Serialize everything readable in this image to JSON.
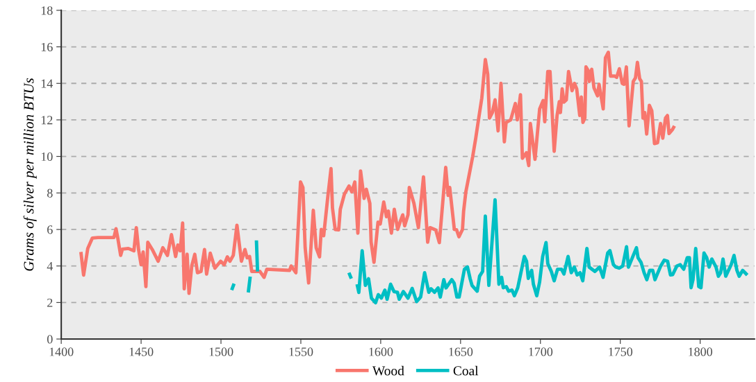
{
  "chart_data": {
    "type": "line",
    "ylabel": "Grams of silver per million BTUs",
    "xlim": [
      1400,
      1834
    ],
    "xticks": [
      1400,
      1450,
      1500,
      1550,
      1600,
      1650,
      1700,
      1750,
      1800
    ],
    "ylim": [
      0,
      18
    ],
    "yticks": [
      0,
      2,
      4,
      6,
      8,
      10,
      12,
      14,
      16,
      18
    ],
    "grid": "y",
    "legend": "bottom",
    "line_style": "solid",
    "marker": "none",
    "series": [
      {
        "name": "Wood",
        "color": "#f8766d",
        "x": [
          1412.3,
          1414,
          1416.6,
          1419.5,
          1423,
          1433,
          1434.3,
          1435.4,
          1437.2,
          1438.3,
          1442,
          1445.5,
          1447,
          1448.4,
          1450,
          1451.3,
          1453,
          1454.2,
          1457,
          1460.7,
          1463.6,
          1466.5,
          1469,
          1471.6,
          1473,
          1474.5,
          1476,
          1477,
          1478.8,
          1480,
          1481.7,
          1483.6,
          1485.3,
          1487.5,
          1489.7,
          1491,
          1493.3,
          1496.2,
          1499.8,
          1502,
          1504,
          1505.6,
          1507.7,
          1510,
          1512.8,
          1515,
          1516.4,
          1517.9,
          1519.3,
          1524.4,
          1527,
          1528.7,
          1543,
          1543.9,
          1546.9,
          1549.8,
          1551.3,
          1552.7,
          1554.9,
          1557.8,
          1559.6,
          1561.7,
          1562.8,
          1564.3,
          1566.9,
          1568.9,
          1569.8,
          1571.5,
          1573.7,
          1574.7,
          1577.3,
          1580.2,
          1581.9,
          1583.8,
          1585.7,
          1587.4,
          1589.6,
          1591,
          1593.2,
          1594,
          1595.8,
          1598.3,
          1599.7,
          1601.9,
          1603.6,
          1604.8,
          1606.7,
          1608.5,
          1610.6,
          1612.1,
          1613.8,
          1615,
          1617.1,
          1617.9,
          1620.8,
          1623.6,
          1626.8,
          1629.4,
          1630.9,
          1634.5,
          1636.7,
          1640.7,
          1642.2,
          1643.2,
          1646.1,
          1647.5,
          1649,
          1651.2,
          1651.9,
          1653.3,
          1655.4,
          1657.6,
          1659.5,
          1661.2,
          1663.3,
          1665.5,
          1667,
          1668.1,
          1669.9,
          1671.6,
          1673.5,
          1675.3,
          1677.4,
          1678.5,
          1681.4,
          1684.3,
          1685.5,
          1687.5,
          1688.7,
          1691.2,
          1692.7,
          1693.7,
          1696.6,
          1699.5,
          1701.7,
          1702.7,
          1704.6,
          1706,
          1708.6,
          1710.4,
          1711.8,
          1712.5,
          1713.6,
          1714.7,
          1716.2,
          1717.6,
          1719.8,
          1721.3,
          1722.7,
          1724.6,
          1725.6,
          1726.6,
          1727.8,
          1728.5,
          1729.9,
          1730.6,
          1732.1,
          1733.5,
          1735.7,
          1736.7,
          1739.3,
          1740.7,
          1742.5,
          1743.9,
          1746.5,
          1747.7,
          1749.4,
          1751.2,
          1752.3,
          1753.8,
          1755.5,
          1758.1,
          1759.5,
          1760.7,
          1762.1,
          1763.2,
          1764.2,
          1765.3,
          1766.5,
          1768.2,
          1769.7,
          1771.4,
          1773.3,
          1775.2,
          1776.6,
          1778.3,
          1779.5,
          1780.5,
          1782.7,
          1783.9
        ],
        "values": [
          4.77,
          3.5,
          4.96,
          5.53,
          5.56,
          5.56,
          6.04,
          5.53,
          4.58,
          4.92,
          4.96,
          4.83,
          6.1,
          4.9,
          4.07,
          4.77,
          2.87,
          5.3,
          4.9,
          4.26,
          5.0,
          4.58,
          5.72,
          4.52,
          5.15,
          4.83,
          6.35,
          2.75,
          4.64,
          2.5,
          4.0,
          4.64,
          3.63,
          3.7,
          4.9,
          3.56,
          4.7,
          3.88,
          4.26,
          4.07,
          4.5,
          4.26,
          4.58,
          6.23,
          4.26,
          4.9,
          4.45,
          4.52,
          3.7,
          3.7,
          3.38,
          3.82,
          3.76,
          4.0,
          3.63,
          8.6,
          8.3,
          5.0,
          3.07,
          7.05,
          5.0,
          4.5,
          6.0,
          5.66,
          7.8,
          9.33,
          7.18,
          6.0,
          5.98,
          7.1,
          7.94,
          8.38,
          8.06,
          8.6,
          5.8,
          9.2,
          7.7,
          8.2,
          7.43,
          5.3,
          4.2,
          6.4,
          6.3,
          7.5,
          6.7,
          7.0,
          5.8,
          7.1,
          6.0,
          6.4,
          6.8,
          6.2,
          6.8,
          8.3,
          7.43,
          6.1,
          8.88,
          5.3,
          6.1,
          5.97,
          5.28,
          9.4,
          7.87,
          8.3,
          6.0,
          5.98,
          5.6,
          6.0,
          7.0,
          8.06,
          9.0,
          10.0,
          11.0,
          12.0,
          13.2,
          15.3,
          14.5,
          12.1,
          12.4,
          13.1,
          11.4,
          14.0,
          10.8,
          11.86,
          12.0,
          12.9,
          12.0,
          13.38,
          9.9,
          10.2,
          9.5,
          11.8,
          9.84,
          12.6,
          13.06,
          11.9,
          14.65,
          14.65,
          10.28,
          12.24,
          13.0,
          12.4,
          13.7,
          12.97,
          13.1,
          14.65,
          13.6,
          14.0,
          13.7,
          12.24,
          13.25,
          11.86,
          12.1,
          14.9,
          14.7,
          14.1,
          14.77,
          13.76,
          13.32,
          13.95,
          12.6,
          15.4,
          15.7,
          14.4,
          14.4,
          14.33,
          14.8,
          14.0,
          13.95,
          14.9,
          11.67,
          14.1,
          14.3,
          15.15,
          14.26,
          14.1,
          12.1,
          12.4,
          11.23,
          12.8,
          12.5,
          10.7,
          10.75,
          11.8,
          11.0,
          12.1,
          12.24,
          11.25,
          11.48,
          11.67
        ]
      },
      {
        "name": "Coal",
        "color": "#00bfc4",
        "x": [
          1506.7,
          1508.2,
          1512,
          1517.1,
          1518.3,
          1520,
          1522.2,
          1522.9,
          1550,
          1580.1,
          1581.6,
          1583,
          1585.2,
          1586.3,
          1588.4,
          1590.4,
          1592.4,
          1594.2,
          1596.8,
          1598.5,
          1600.4,
          1602.6,
          1604,
          1606.2,
          1608.3,
          1610.5,
          1611.6,
          1614.2,
          1617.1,
          1619.7,
          1622.5,
          1625,
          1627.5,
          1630.1,
          1631.5,
          1633.7,
          1635.9,
          1637.3,
          1639.5,
          1640.9,
          1644.5,
          1646,
          1647.7,
          1649.1,
          1652.4,
          1654.3,
          1656,
          1657.2,
          1660.4,
          1661.9,
          1663.8,
          1665.5,
          1667.7,
          1671.6,
          1674,
          1675.7,
          1676.7,
          1678.6,
          1680.1,
          1682.2,
          1683.7,
          1685.8,
          1689.9,
          1691.3,
          1692.4,
          1694.5,
          1695.6,
          1697.7,
          1699.5,
          1701.4,
          1703.5,
          1704.6,
          1706.8,
          1708.6,
          1710.7,
          1713.2,
          1714.7,
          1717.3,
          1719.3,
          1721.2,
          1723,
          1724.8,
          1726.5,
          1729.1,
          1730.5,
          1734.1,
          1737,
          1739.2,
          1742.1,
          1743.5,
          1745.7,
          1747.2,
          1749.3,
          1751.5,
          1753.9,
          1755.1,
          1757.2,
          1760.1,
          1761.1,
          1763,
          1764.9,
          1766.6,
          1768.4,
          1770.3,
          1771.7,
          1775.3,
          1777.5,
          1779.6,
          1781.4,
          1782.8,
          1785.4,
          1787.5,
          1789.7,
          1791.9,
          1793.3,
          1794.3,
          1795.5,
          1797.2,
          1799.1,
          1800.5,
          1802.4,
          1804.1,
          1805.6,
          1807.3,
          1809.9,
          1811.4,
          1812.8,
          1814.3,
          1816,
          1819.4,
          1821.2,
          1823,
          1824.4,
          1826.6,
          1829.5
        ],
        "values": [
          2.68,
          3.03,
          null,
          2.55,
          3.42,
          null,
          5.4,
          3.7,
          null,
          3.63,
          3.31,
          null,
          3.0,
          2.55,
          4.83,
          2.94,
          3.3,
          2.24,
          1.99,
          2.43,
          2.24,
          2.68,
          2.18,
          3.0,
          2.6,
          2.56,
          2.18,
          2.6,
          2.24,
          2.77,
          2.05,
          2.3,
          3.63,
          2.56,
          2.75,
          2.56,
          2.8,
          2.3,
          3.25,
          2.8,
          3.25,
          3.05,
          2.3,
          2.3,
          3.82,
          3.95,
          3.3,
          2.93,
          2.62,
          3.44,
          3.7,
          6.73,
          2.94,
          7.62,
          3.0,
          3.38,
          2.81,
          2.87,
          2.62,
          2.68,
          2.37,
          2.81,
          4.52,
          4.26,
          3.32,
          3.76,
          3.0,
          2.37,
          3.13,
          4.52,
          5.28,
          4.13,
          3.7,
          3.19,
          3.82,
          3.82,
          3.56,
          4.52,
          3.63,
          3.94,
          3.51,
          3.63,
          3.19,
          4.96,
          3.94,
          3.7,
          3.94,
          3.38,
          4.71,
          4.84,
          4.07,
          3.94,
          3.88,
          4.0,
          5.05,
          3.94,
          4.38,
          5.0,
          4.45,
          4.19,
          3.63,
          3.25,
          3.76,
          3.76,
          3.25,
          4.0,
          4.32,
          4.26,
          3.51,
          3.53,
          4.0,
          4.07,
          3.82,
          4.45,
          4.45,
          2.81,
          3.25,
          4.96,
          2.87,
          2.81,
          4.71,
          4.45,
          3.94,
          4.38,
          3.94,
          3.44,
          3.63,
          4.38,
          3.44,
          4.07,
          4.58,
          3.76,
          3.44,
          3.76,
          3.5
        ]
      }
    ]
  }
}
